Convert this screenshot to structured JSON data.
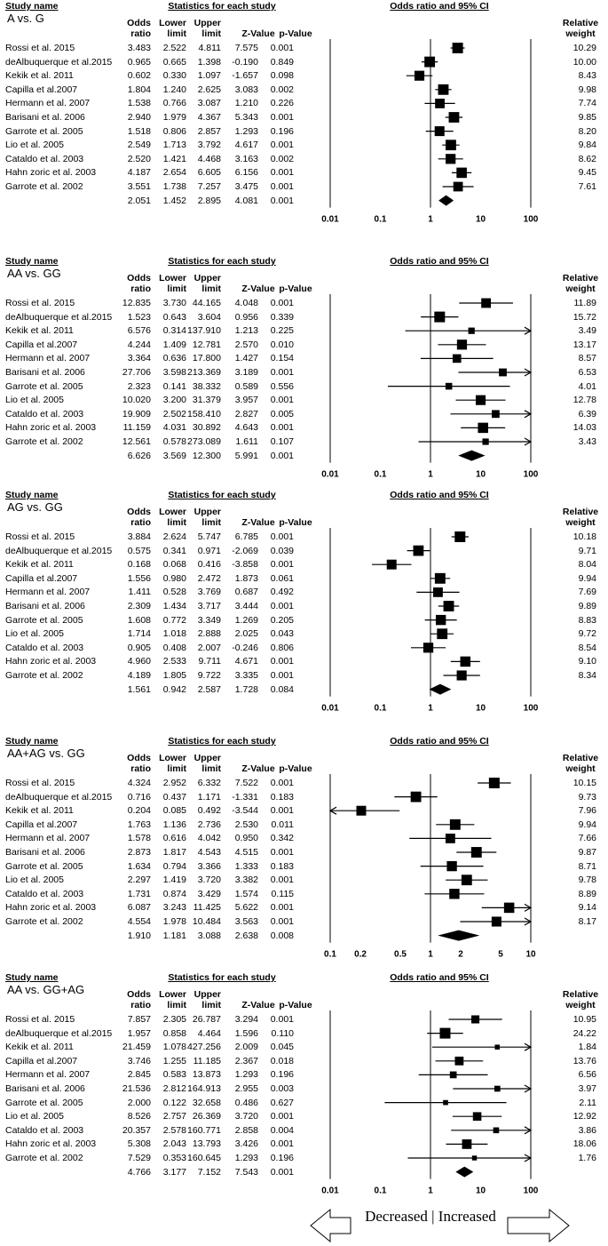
{
  "headers": {
    "study_name": "Study name",
    "stats": "Statistics for each study",
    "plot": "Odds ratio and 95% CI",
    "odds": [
      "Odds",
      "ratio"
    ],
    "lower": [
      "Lower",
      "limit"
    ],
    "upper": [
      "Upper",
      "limit"
    ],
    "z": "Z-Value",
    "p": "p-Value",
    "weight": [
      "Relative",
      "weight"
    ]
  },
  "footer": {
    "decreased": "Decreased",
    "divider": "|",
    "increased": "Increased"
  },
  "chart_data": [
    {
      "type": "forest",
      "comparison": "A vs. G",
      "axis_ticks": [
        "0.01",
        "0.1",
        "1",
        "10",
        "100"
      ],
      "xlim": [
        0.01,
        100
      ],
      "studies": [
        {
          "name": "Rossi et al. 2015",
          "or": "3.483",
          "lower": "2.522",
          "upper": "4.811",
          "z": "7.575",
          "p": "0.001",
          "weight": "10.29"
        },
        {
          "name": "deAlbuquerque et al.2015",
          "or": "0.965",
          "lower": "0.665",
          "upper": "1.398",
          "z": "-0.190",
          "p": "0.849",
          "weight": "10.00"
        },
        {
          "name": "Kekik et al. 2011",
          "or": "0.602",
          "lower": "0.330",
          "upper": "1.097",
          "z": "-1.657",
          "p": "0.098",
          "weight": "8.43"
        },
        {
          "name": "Capilla et al.2007",
          "or": "1.804",
          "lower": "1.240",
          "upper": "2.625",
          "z": "3.083",
          "p": "0.002",
          "weight": "9.98"
        },
        {
          "name": "Hermann et al. 2007",
          "or": "1.538",
          "lower": "0.766",
          "upper": "3.087",
          "z": "1.210",
          "p": "0.226",
          "weight": "7.74"
        },
        {
          "name": "Barisani et al. 2006",
          "or": "2.940",
          "lower": "1.979",
          "upper": "4.367",
          "z": "5.343",
          "p": "0.001",
          "weight": "9.85"
        },
        {
          "name": "Garrote et al. 2005",
          "or": "1.518",
          "lower": "0.806",
          "upper": "2.857",
          "z": "1.293",
          "p": "0.196",
          "weight": "8.20"
        },
        {
          "name": "Lio et al. 2005",
          "or": "2.549",
          "lower": "1.713",
          "upper": "3.792",
          "z": "4.617",
          "p": "0.001",
          "weight": "9.84"
        },
        {
          "name": "Cataldo et al. 2003",
          "or": "2.520",
          "lower": "1.421",
          "upper": "4.468",
          "z": "3.163",
          "p": "0.002",
          "weight": "8.62"
        },
        {
          "name": "Hahn zoric et al. 2003",
          "or": "4.187",
          "lower": "2.654",
          "upper": "6.605",
          "z": "6.156",
          "p": "0.001",
          "weight": "9.45"
        },
        {
          "name": "Garrote et al. 2002",
          "or": "3.551",
          "lower": "1.738",
          "upper": "7.257",
          "z": "3.475",
          "p": "0.001",
          "weight": "7.61"
        }
      ],
      "summary": {
        "or": "2.051",
        "lower": "1.452",
        "upper": "2.895",
        "z": "4.081",
        "p": "0.001"
      }
    },
    {
      "type": "forest",
      "comparison": "AA vs. GG",
      "axis_ticks": [
        "0.01",
        "0.1",
        "1",
        "10",
        "100"
      ],
      "xlim": [
        0.01,
        100
      ],
      "studies": [
        {
          "name": "Rossi et al. 2015",
          "or": "12.835",
          "lower": "3.730",
          "upper": "44.165",
          "z": "4.048",
          "p": "0.001",
          "weight": "11.89"
        },
        {
          "name": "deAlbuquerque et al.2015",
          "or": "1.523",
          "lower": "0.643",
          "upper": "3.604",
          "z": "0.956",
          "p": "0.339",
          "weight": "15.72"
        },
        {
          "name": "Kekik et al. 2011",
          "or": "6.576",
          "lower": "0.314",
          "upper": "137.910",
          "z": "1.213",
          "p": "0.225",
          "weight": "3.49"
        },
        {
          "name": "Capilla et al.2007",
          "or": "4.244",
          "lower": "1.409",
          "upper": "12.781",
          "z": "2.570",
          "p": "0.010",
          "weight": "13.17"
        },
        {
          "name": "Hermann et al. 2007",
          "or": "3.364",
          "lower": "0.636",
          "upper": "17.800",
          "z": "1.427",
          "p": "0.154",
          "weight": "8.57"
        },
        {
          "name": "Barisani et al. 2006",
          "or": "27.706",
          "lower": "3.598",
          "upper": "213.369",
          "z": "3.189",
          "p": "0.001",
          "weight": "6.53"
        },
        {
          "name": "Garrote et al. 2005",
          "or": "2.323",
          "lower": "0.141",
          "upper": "38.332",
          "z": "0.589",
          "p": "0.556",
          "weight": "4.01"
        },
        {
          "name": "Lio et al. 2005",
          "or": "10.020",
          "lower": "3.200",
          "upper": "31.379",
          "z": "3.957",
          "p": "0.001",
          "weight": "12.78"
        },
        {
          "name": "Cataldo et al. 2003",
          "or": "19.909",
          "lower": "2.502",
          "upper": "158.410",
          "z": "2.827",
          "p": "0.005",
          "weight": "6.39"
        },
        {
          "name": "Hahn zoric et al. 2003",
          "or": "11.159",
          "lower": "4.031",
          "upper": "30.892",
          "z": "4.643",
          "p": "0.001",
          "weight": "14.03"
        },
        {
          "name": "Garrote et al. 2002",
          "or": "12.561",
          "lower": "0.578",
          "upper": "273.089",
          "z": "1.611",
          "p": "0.107",
          "weight": "3.43"
        }
      ],
      "summary": {
        "or": "6.626",
        "lower": "3.569",
        "upper": "12.300",
        "z": "5.991",
        "p": "0.001"
      }
    },
    {
      "type": "forest",
      "comparison": "AG vs. GG",
      "axis_ticks": [
        "0.01",
        "0.1",
        "1",
        "10",
        "100"
      ],
      "xlim": [
        0.01,
        100
      ],
      "studies": [
        {
          "name": "Rossi et al. 2015",
          "or": "3.884",
          "lower": "2.624",
          "upper": "5.747",
          "z": "6.785",
          "p": "0.001",
          "weight": "10.18"
        },
        {
          "name": "deAlbuquerque et al.2015",
          "or": "0.575",
          "lower": "0.341",
          "upper": "0.971",
          "z": "-2.069",
          "p": "0.039",
          "weight": "9.71"
        },
        {
          "name": "Kekik et al. 2011",
          "or": "0.168",
          "lower": "0.068",
          "upper": "0.416",
          "z": "-3.858",
          "p": "0.001",
          "weight": "8.04"
        },
        {
          "name": "Capilla et al.2007",
          "or": "1.556",
          "lower": "0.980",
          "upper": "2.472",
          "z": "1.873",
          "p": "0.061",
          "weight": "9.94"
        },
        {
          "name": "Hermann et al. 2007",
          "or": "1.411",
          "lower": "0.528",
          "upper": "3.769",
          "z": "0.687",
          "p": "0.492",
          "weight": "7.69"
        },
        {
          "name": "Barisani et al. 2006",
          "or": "2.309",
          "lower": "1.434",
          "upper": "3.717",
          "z": "3.444",
          "p": "0.001",
          "weight": "9.89"
        },
        {
          "name": "Garrote et al. 2005",
          "or": "1.608",
          "lower": "0.772",
          "upper": "3.349",
          "z": "1.269",
          "p": "0.205",
          "weight": "8.83"
        },
        {
          "name": "Lio et al. 2005",
          "or": "1.714",
          "lower": "1.018",
          "upper": "2.888",
          "z": "2.025",
          "p": "0.043",
          "weight": "9.72"
        },
        {
          "name": "Cataldo et al. 2003",
          "or": "0.905",
          "lower": "0.408",
          "upper": "2.007",
          "z": "-0.246",
          "p": "0.806",
          "weight": "8.54"
        },
        {
          "name": "Hahn zoric et al. 2003",
          "or": "4.960",
          "lower": "2.533",
          "upper": "9.711",
          "z": "4.671",
          "p": "0.001",
          "weight": "9.10"
        },
        {
          "name": "Garrote et al. 2002",
          "or": "4.189",
          "lower": "1.805",
          "upper": "9.722",
          "z": "3.335",
          "p": "0.001",
          "weight": "8.34"
        }
      ],
      "summary": {
        "or": "1.561",
        "lower": "0.942",
        "upper": "2.587",
        "z": "1.728",
        "p": "0.084"
      }
    },
    {
      "type": "forest",
      "comparison": "AA+AG vs. GG",
      "axis_ticks": [
        "0.1",
        "0.2",
        "0.5",
        "1",
        "2",
        "5",
        "10"
      ],
      "xlim": [
        0.1,
        10
      ],
      "studies": [
        {
          "name": "Rossi et al. 2015",
          "or": "4.324",
          "lower": "2.952",
          "upper": "6.332",
          "z": "7.522",
          "p": "0.001",
          "weight": "10.15"
        },
        {
          "name": "deAlbuquerque et al.2015",
          "or": "0.716",
          "lower": "0.437",
          "upper": "1.171",
          "z": "-1.331",
          "p": "0.183",
          "weight": "9.73"
        },
        {
          "name": "Kekik et al. 2011",
          "or": "0.204",
          "lower": "0.085",
          "upper": "0.492",
          "z": "-3.544",
          "p": "0.001",
          "weight": "7.96"
        },
        {
          "name": "Capilla et al.2007",
          "or": "1.763",
          "lower": "1.136",
          "upper": "2.736",
          "z": "2.530",
          "p": "0.011",
          "weight": "9.94"
        },
        {
          "name": "Hermann et al. 2007",
          "or": "1.578",
          "lower": "0.616",
          "upper": "4.042",
          "z": "0.950",
          "p": "0.342",
          "weight": "7.66"
        },
        {
          "name": "Barisani et al. 2006",
          "or": "2.873",
          "lower": "1.817",
          "upper": "4.543",
          "z": "4.515",
          "p": "0.001",
          "weight": "9.87"
        },
        {
          "name": "Garrote et al. 2005",
          "or": "1.634",
          "lower": "0.794",
          "upper": "3.366",
          "z": "1.333",
          "p": "0.183",
          "weight": "8.71"
        },
        {
          "name": "Lio et al. 2005",
          "or": "2.297",
          "lower": "1.419",
          "upper": "3.720",
          "z": "3.382",
          "p": "0.001",
          "weight": "9.78"
        },
        {
          "name": "Cataldo et al. 2003",
          "or": "1.731",
          "lower": "0.874",
          "upper": "3.429",
          "z": "1.574",
          "p": "0.115",
          "weight": "8.89"
        },
        {
          "name": "Hahn zoric et al. 2003",
          "or": "6.087",
          "lower": "3.243",
          "upper": "11.425",
          "z": "5.622",
          "p": "0.001",
          "weight": "9.14"
        },
        {
          "name": "Garrote et al. 2002",
          "or": "4.554",
          "lower": "1.978",
          "upper": "10.484",
          "z": "3.563",
          "p": "0.001",
          "weight": "8.17"
        }
      ],
      "summary": {
        "or": "1.910",
        "lower": "1.181",
        "upper": "3.088",
        "z": "2.638",
        "p": "0.008"
      }
    },
    {
      "type": "forest",
      "comparison": "AA vs. GG+AG",
      "axis_ticks": [
        "0.01",
        "0.1",
        "1",
        "10",
        "100"
      ],
      "xlim": [
        0.01,
        100
      ],
      "studies": [
        {
          "name": "Rossi et al. 2015",
          "or": "7.857",
          "lower": "2.305",
          "upper": "26.787",
          "z": "3.294",
          "p": "0.001",
          "weight": "10.95"
        },
        {
          "name": "deAlbuquerque et al.2015",
          "or": "1.957",
          "lower": "0.858",
          "upper": "4.464",
          "z": "1.596",
          "p": "0.110",
          "weight": "24.22"
        },
        {
          "name": "Kekik et al. 2011",
          "or": "21.459",
          "lower": "1.078",
          "upper": "427.256",
          "z": "2.009",
          "p": "0.045",
          "weight": "1.84"
        },
        {
          "name": "Capilla et al.2007",
          "or": "3.746",
          "lower": "1.255",
          "upper": "11.185",
          "z": "2.367",
          "p": "0.018",
          "weight": "13.76"
        },
        {
          "name": "Hermann et al. 2007",
          "or": "2.845",
          "lower": "0.583",
          "upper": "13.873",
          "z": "1.293",
          "p": "0.196",
          "weight": "6.56"
        },
        {
          "name": "Barisani et al. 2006",
          "or": "21.536",
          "lower": "2.812",
          "upper": "164.913",
          "z": "2.955",
          "p": "0.003",
          "weight": "3.97"
        },
        {
          "name": "Garrote et al. 2005",
          "or": "2.000",
          "lower": "0.122",
          "upper": "32.658",
          "z": "0.486",
          "p": "0.627",
          "weight": "2.11"
        },
        {
          "name": "Lio et al. 2005",
          "or": "8.526",
          "lower": "2.757",
          "upper": "26.369",
          "z": "3.720",
          "p": "0.001",
          "weight": "12.92"
        },
        {
          "name": "Cataldo et al. 2003",
          "or": "20.357",
          "lower": "2.578",
          "upper": "160.771",
          "z": "2.858",
          "p": "0.004",
          "weight": "3.86"
        },
        {
          "name": "Hahn zoric et al. 2003",
          "or": "5.308",
          "lower": "2.043",
          "upper": "13.793",
          "z": "3.426",
          "p": "0.001",
          "weight": "18.06"
        },
        {
          "name": "Garrote et al. 2002",
          "or": "7.529",
          "lower": "0.353",
          "upper": "160.645",
          "z": "1.293",
          "p": "0.196",
          "weight": "1.76"
        }
      ],
      "summary": {
        "or": "4.766",
        "lower": "3.177",
        "upper": "7.152",
        "z": "7.543",
        "p": "0.001"
      }
    }
  ]
}
